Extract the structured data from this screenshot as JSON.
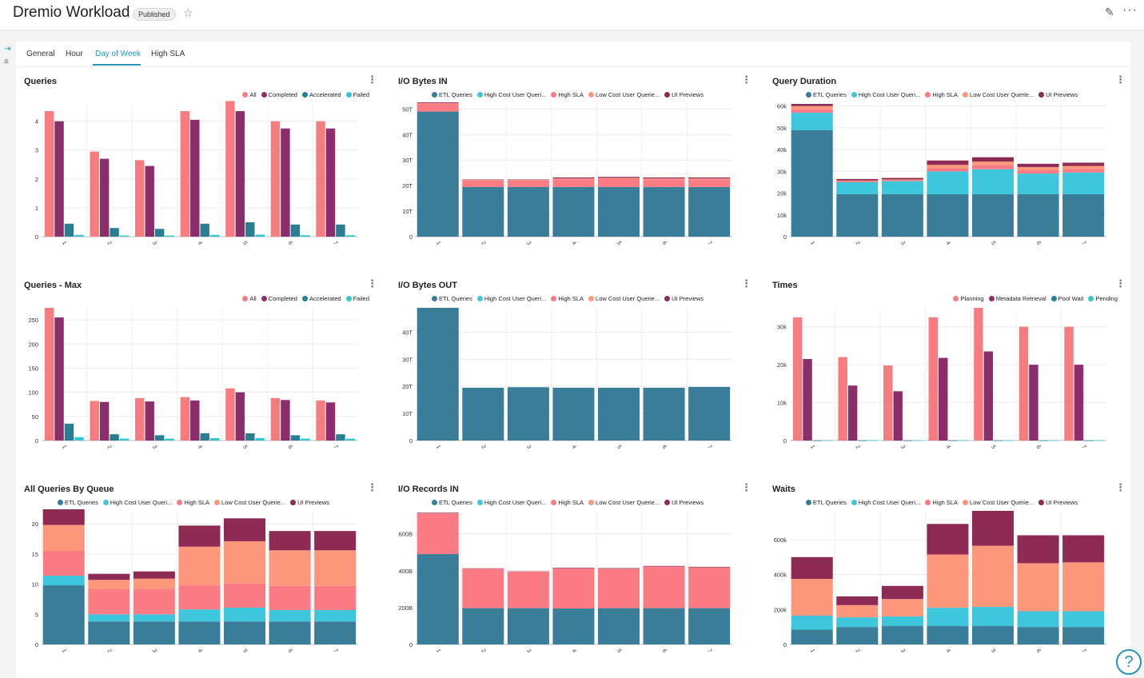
{
  "header": {
    "title": "Dremio Workload",
    "badge": "Published",
    "star": "☆",
    "edit": "✎",
    "more": "···"
  },
  "sidebar": {
    "expand_icon": "⇥",
    "filter_icon": "≡"
  },
  "tabs": [
    "General",
    "Hour",
    "Day of Week",
    "High SLA"
  ],
  "active_tab": "Day of Week",
  "menu_glyph": "⋮",
  "help_glyph": "?",
  "colors": {
    "all": "#f67c80",
    "completed": "#8b2e6b",
    "accelerated": "#297e91",
    "failed": "#33c7d1",
    "etl": "#3a7d99",
    "highcost": "#3ec7dc",
    "highsla": "#fb7b84",
    "lowcost": "#fc977c",
    "ui": "#8d2b55",
    "planning": "#f67c80",
    "metadata": "#8b2e6b",
    "poolwait": "#297e91",
    "pending": "#33c7d1"
  },
  "chart_data": [
    {
      "id": "queries",
      "type": "bar",
      "title": "Queries",
      "categories": [
        "1",
        "2",
        "3",
        "4",
        "5",
        "6",
        "7"
      ],
      "yticks": [
        0,
        1,
        2,
        3,
        4
      ],
      "ytick_labels": [
        "0",
        "1",
        "2",
        "3",
        "4"
      ],
      "ymax": 4.6,
      "series": [
        {
          "name": "All",
          "color_key": "all",
          "values": [
            4.35,
            2.95,
            2.65,
            4.35,
            4.7,
            4.0,
            4.0
          ]
        },
        {
          "name": "Completed",
          "color_key": "completed",
          "values": [
            4.0,
            2.7,
            2.45,
            4.05,
            4.35,
            3.75,
            3.75
          ]
        },
        {
          "name": "Accelerated",
          "color_key": "accelerated",
          "values": [
            0.45,
            0.3,
            0.27,
            0.45,
            0.5,
            0.42,
            0.42
          ]
        },
        {
          "name": "Failed",
          "color_key": "failed",
          "values": [
            0.06,
            0.04,
            0.04,
            0.06,
            0.07,
            0.05,
            0.05
          ]
        }
      ]
    },
    {
      "id": "io_bytes_in",
      "type": "stacked-bar",
      "title": "I/O Bytes IN",
      "categories": [
        "1",
        "2",
        "3",
        "4",
        "5",
        "6",
        "7"
      ],
      "yticks": [
        0,
        10,
        20,
        30,
        40,
        50
      ],
      "ytick_labels": [
        "0",
        "10T",
        "20T",
        "30T",
        "40T",
        "50T"
      ],
      "ymax": 52,
      "series": [
        {
          "name": "ETL Queries",
          "color_key": "etl",
          "values": [
            49,
            19.5,
            19.5,
            19.5,
            19.5,
            19.5,
            19.5
          ]
        },
        {
          "name": "High Cost User Queri...",
          "color_key": "highcost",
          "values": [
            0,
            0,
            0,
            0,
            0,
            0,
            0
          ]
        },
        {
          "name": "High SLA",
          "color_key": "highsla",
          "values": [
            3,
            2.5,
            2.5,
            3,
            3.2,
            3,
            3
          ]
        },
        {
          "name": "Low Cost User Querie...",
          "color_key": "lowcost",
          "values": [
            0.3,
            0.2,
            0.2,
            0.3,
            0.3,
            0.3,
            0.3
          ]
        },
        {
          "name": "UI Previews",
          "color_key": "ui",
          "values": [
            0.3,
            0.2,
            0.2,
            0.4,
            0.4,
            0.4,
            0.4
          ]
        }
      ]
    },
    {
      "id": "query_duration",
      "type": "stacked-bar",
      "title": "Query Duration",
      "categories": [
        "1",
        "2",
        "3",
        "4",
        "5",
        "6",
        "7"
      ],
      "yticks": [
        0,
        10,
        20,
        30,
        40,
        50,
        60
      ],
      "ytick_labels": [
        "0",
        "10k",
        "20k",
        "30k",
        "40k",
        "50k",
        "60k"
      ],
      "ymax": 61,
      "series": [
        {
          "name": "ETL Queries",
          "color_key": "etl",
          "values": [
            49,
            19.5,
            19.5,
            19.5,
            19.5,
            19.5,
            19.5
          ]
        },
        {
          "name": "High Cost User Queri...",
          "color_key": "highcost",
          "values": [
            8,
            5.5,
            6,
            10.5,
            11.5,
            9.5,
            10
          ]
        },
        {
          "name": "High SLA",
          "color_key": "highsla",
          "values": [
            1.5,
            0.5,
            0.5,
            1.5,
            2,
            1.5,
            1.5
          ]
        },
        {
          "name": "Low Cost User Querie...",
          "color_key": "lowcost",
          "values": [
            1.5,
            0.3,
            0.3,
            1.5,
            1.5,
            1.5,
            1.5
          ]
        },
        {
          "name": "UI Previews",
          "color_key": "ui",
          "values": [
            1,
            0.7,
            0.7,
            2,
            2,
            1.5,
            1.5
          ]
        }
      ]
    },
    {
      "id": "queries_max",
      "type": "bar",
      "title": "Queries - Max",
      "categories": [
        "1",
        "2",
        "3",
        "4",
        "5",
        "6",
        "7"
      ],
      "yticks": [
        0,
        50,
        100,
        150,
        200,
        250
      ],
      "ytick_labels": [
        "0",
        "50",
        "100",
        "150",
        "200",
        "250"
      ],
      "ymax": 275,
      "series": [
        {
          "name": "All",
          "color_key": "all",
          "values": [
            275,
            82,
            88,
            90,
            108,
            88,
            83
          ]
        },
        {
          "name": "Completed",
          "color_key": "completed",
          "values": [
            255,
            80,
            81,
            83,
            100,
            84,
            79
          ]
        },
        {
          "name": "Accelerated",
          "color_key": "accelerated",
          "values": [
            35,
            13,
            11,
            15,
            15,
            11,
            13
          ]
        },
        {
          "name": "Failed",
          "color_key": "failed",
          "values": [
            7,
            4,
            4,
            5,
            5,
            4,
            4
          ]
        }
      ]
    },
    {
      "id": "io_bytes_out",
      "type": "stacked-bar",
      "title": "I/O Bytes OUT",
      "categories": [
        "1",
        "2",
        "3",
        "4",
        "5",
        "6",
        "7"
      ],
      "yticks": [
        0,
        10,
        20,
        30,
        40
      ],
      "ytick_labels": [
        "0",
        "10T",
        "20T",
        "30T",
        "40T"
      ],
      "ymax": 49,
      "series": [
        {
          "name": "ETL Queries",
          "color_key": "etl",
          "values": [
            49,
            19.5,
            19.7,
            19.5,
            19.5,
            19.5,
            19.8
          ]
        },
        {
          "name": "High Cost User Queri...",
          "color_key": "highcost",
          "values": [
            0,
            0,
            0,
            0,
            0,
            0,
            0
          ]
        },
        {
          "name": "High SLA",
          "color_key": "highsla",
          "values": [
            0,
            0,
            0,
            0,
            0,
            0,
            0
          ]
        },
        {
          "name": "Low Cost User Querie...",
          "color_key": "lowcost",
          "values": [
            0,
            0,
            0,
            0,
            0,
            0,
            0
          ]
        },
        {
          "name": "UI Previews",
          "color_key": "ui",
          "values": [
            0,
            0,
            0,
            0,
            0,
            0,
            0
          ]
        }
      ]
    },
    {
      "id": "times",
      "type": "bar",
      "title": "Times",
      "categories": [
        "1",
        "2",
        "3",
        "4",
        "5",
        "6",
        "7"
      ],
      "yticks": [
        0,
        10,
        20,
        30
      ],
      "ytick_labels": [
        "0",
        "10k",
        "20k",
        "30k"
      ],
      "ymax": 35,
      "series": [
        {
          "name": "Planning",
          "color_key": "planning",
          "values": [
            32.5,
            22,
            19.8,
            32.5,
            35,
            30,
            30
          ]
        },
        {
          "name": "Metadata Retrieval",
          "color_key": "metadata",
          "values": [
            21.5,
            14.5,
            13,
            21.8,
            23.5,
            20,
            20
          ]
        },
        {
          "name": "Pool Wait",
          "color_key": "poolwait",
          "values": [
            0.05,
            0.05,
            0.05,
            0.05,
            0.05,
            0.05,
            0.05
          ]
        },
        {
          "name": "Pending",
          "color_key": "pending",
          "values": [
            0.1,
            0.1,
            0.1,
            0.1,
            0.1,
            0.1,
            0.1
          ]
        }
      ]
    },
    {
      "id": "queries_by_queue",
      "type": "stacked-bar",
      "title": "All Queries By Queue",
      "categories": [
        "1",
        "2",
        "3",
        "4",
        "5",
        "6",
        "7"
      ],
      "yticks": [
        0,
        5,
        10,
        15,
        20
      ],
      "ytick_labels": [
        "0",
        "5",
        "10",
        "15",
        "20"
      ],
      "ymax": 22,
      "series": [
        {
          "name": "ETL Queries",
          "color_key": "etl",
          "values": [
            9.8,
            3.8,
            3.8,
            3.8,
            3.8,
            3.8,
            3.8
          ]
        },
        {
          "name": "High Cost User Queri...",
          "color_key": "highcost",
          "values": [
            1.6,
            1.2,
            1.2,
            2,
            2.3,
            1.9,
            1.9
          ]
        },
        {
          "name": "High SLA",
          "color_key": "highsla",
          "values": [
            4.1,
            4.2,
            4.2,
            4,
            4,
            4,
            4
          ]
        },
        {
          "name": "Low Cost User Querie...",
          "color_key": "lowcost",
          "values": [
            4.3,
            1.5,
            1.7,
            6.4,
            7,
            5.9,
            5.9
          ]
        },
        {
          "name": "UI Previews",
          "color_key": "ui",
          "values": [
            2.6,
            1.0,
            1.2,
            3.5,
            3.8,
            3.2,
            3.2
          ]
        }
      ]
    },
    {
      "id": "io_records_in",
      "type": "stacked-bar",
      "title": "I/O Records IN",
      "categories": [
        "1",
        "2",
        "3",
        "4",
        "5",
        "6",
        "7"
      ],
      "yticks": [
        0,
        200,
        400,
        600
      ],
      "ytick_labels": [
        "0",
        "200B",
        "400B",
        "600B"
      ],
      "ymax": 720,
      "series": [
        {
          "name": "ETL Queries",
          "color_key": "etl",
          "values": [
            490,
            197,
            197,
            195,
            197,
            197,
            197
          ]
        },
        {
          "name": "High Cost User Queri...",
          "color_key": "highcost",
          "values": [
            0,
            0,
            0,
            0,
            0,
            0,
            0
          ]
        },
        {
          "name": "High SLA",
          "color_key": "highsla",
          "values": [
            220,
            213,
            198,
            217,
            213,
            225,
            220
          ]
        },
        {
          "name": "Low Cost User Querie...",
          "color_key": "lowcost",
          "values": [
            2,
            1,
            1,
            1,
            1,
            1,
            1
          ]
        },
        {
          "name": "UI Previews",
          "color_key": "ui",
          "values": [
            3,
            2,
            1,
            3,
            3,
            3,
            3
          ]
        }
      ]
    },
    {
      "id": "waits",
      "type": "stacked-bar",
      "title": "Waits",
      "categories": [
        "1",
        "2",
        "3",
        "4",
        "5",
        "6",
        "7"
      ],
      "yticks": [
        0,
        200,
        400,
        600
      ],
      "ytick_labels": [
        "0",
        "200k",
        "400k",
        "600k"
      ],
      "ymax": 760,
      "series": [
        {
          "name": "ETL Queries",
          "color_key": "etl",
          "values": [
            85,
            100,
            105,
            105,
            105,
            100,
            100
          ]
        },
        {
          "name": "High Cost User Queri...",
          "color_key": "highcost",
          "values": [
            80,
            55,
            55,
            105,
            110,
            90,
            90
          ]
        },
        {
          "name": "High SLA",
          "color_key": "highsla",
          "values": [
            0,
            0,
            0,
            0,
            0,
            0,
            0
          ]
        },
        {
          "name": "Low Cost User Querie...",
          "color_key": "lowcost",
          "values": [
            210,
            70,
            100,
            305,
            350,
            275,
            280
          ]
        },
        {
          "name": "UI Previews",
          "color_key": "ui",
          "values": [
            125,
            50,
            75,
            175,
            200,
            160,
            155
          ]
        }
      ]
    }
  ]
}
